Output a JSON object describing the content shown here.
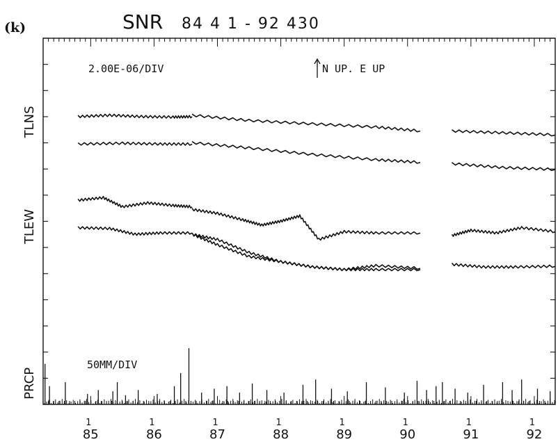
{
  "panel_label": "(k)",
  "title": "SNR",
  "title_range": "84 4 1 - 92 430",
  "chart_data": {
    "type": "line",
    "x_range": [
      84.25,
      92.33
    ],
    "x_ticks": [
      {
        "year": 85,
        "label_top": "1",
        "label_bottom": "85"
      },
      {
        "year": 86,
        "label_top": "1",
        "label_bottom": "86"
      },
      {
        "year": 87,
        "label_top": "1",
        "label_bottom": "87"
      },
      {
        "year": 88,
        "label_top": "1",
        "label_bottom": "88"
      },
      {
        "year": 89,
        "label_top": "1",
        "label_bottom": "89"
      },
      {
        "year": 90,
        "label_top": "1",
        "label_bottom": "90"
      },
      {
        "year": 91,
        "label_top": "1",
        "label_bottom": "91"
      },
      {
        "year": 92,
        "label_top": "1",
        "label_bottom": "92"
      }
    ],
    "y_scale_label": "2.00E-06/DIV",
    "direction_label": "N UP. E UP",
    "y_ticks_div": [
      0,
      1,
      2,
      3,
      4,
      5,
      6,
      7,
      8,
      9,
      10,
      11,
      12,
      13,
      14
    ],
    "y_labels": [
      {
        "text": "TLNS",
        "div": 10.8
      },
      {
        "text": "TLEW",
        "div": 6.8
      },
      {
        "text": "PRCP",
        "div": 0.8
      }
    ],
    "series": [
      {
        "group": "TLNS",
        "stroke": "#111111",
        "segments": [
          [
            [
              84.8,
              11.0
            ],
            [
              85.3,
              11.05
            ],
            [
              85.8,
              11.0
            ],
            [
              86.3,
              10.98
            ],
            [
              86.6,
              11.0
            ]
          ],
          [
            [
              86.6,
              11.05
            ],
            [
              87.5,
              10.85
            ],
            [
              88.5,
              10.72
            ],
            [
              89.5,
              10.6
            ],
            [
              90.2,
              10.45
            ]
          ],
          [
            [
              90.7,
              10.45
            ],
            [
              91.5,
              10.38
            ],
            [
              92.33,
              10.3
            ]
          ]
        ]
      },
      {
        "group": "TLNS",
        "stroke": "#111111",
        "segments": [
          [
            [
              84.8,
              9.95
            ],
            [
              85.5,
              9.98
            ],
            [
              86.1,
              9.95
            ],
            [
              86.6,
              9.95
            ]
          ],
          [
            [
              86.6,
              10.0
            ],
            [
              87.5,
              9.8
            ],
            [
              88.5,
              9.55
            ],
            [
              89.5,
              9.35
            ],
            [
              90.2,
              9.25
            ]
          ],
          [
            [
              90.7,
              9.2
            ],
            [
              91.5,
              9.05
            ],
            [
              92.33,
              8.98
            ]
          ]
        ]
      },
      {
        "group": "TLEW",
        "stroke": "#111111",
        "segments": [
          [
            [
              84.8,
              7.8
            ],
            [
              85.2,
              7.9
            ],
            [
              85.5,
              7.55
            ],
            [
              85.9,
              7.7
            ],
            [
              86.3,
              7.6
            ],
            [
              86.6,
              7.55
            ]
          ],
          [
            [
              86.6,
              7.45
            ],
            [
              87.0,
              7.3
            ],
            [
              87.4,
              7.05
            ],
            [
              87.7,
              6.85
            ],
            [
              88.0,
              7.0
            ],
            [
              88.3,
              7.2
            ],
            [
              88.6,
              6.3
            ],
            [
              89.0,
              6.6
            ],
            [
              89.5,
              6.55
            ],
            [
              90.2,
              6.55
            ]
          ],
          [
            [
              90.7,
              6.45
            ],
            [
              91.0,
              6.65
            ],
            [
              91.4,
              6.55
            ],
            [
              91.8,
              6.75
            ],
            [
              92.33,
              6.6
            ]
          ]
        ]
      },
      {
        "group": "TLEW",
        "stroke": "#111111",
        "segments": [
          [
            [
              84.8,
              6.75
            ],
            [
              85.3,
              6.72
            ],
            [
              85.7,
              6.5
            ],
            [
              86.1,
              6.55
            ],
            [
              86.6,
              6.55
            ]
          ],
          [
            [
              86.6,
              6.5
            ],
            [
              87.0,
              6.1
            ],
            [
              87.5,
              5.65
            ],
            [
              88.0,
              5.45
            ],
            [
              88.5,
              5.25
            ],
            [
              89.0,
              5.15
            ],
            [
              89.5,
              5.3
            ],
            [
              90.2,
              5.2
            ]
          ],
          [
            [
              90.7,
              5.35
            ],
            [
              91.2,
              5.25
            ],
            [
              91.7,
              5.25
            ],
            [
              92.33,
              5.28
            ]
          ]
        ]
      },
      {
        "group": "TLEW",
        "stroke": "#111111",
        "segments": [
          [
            [
              86.6,
              6.5
            ],
            [
              87.0,
              6.3
            ],
            [
              87.5,
              5.8
            ],
            [
              88.0,
              5.45
            ],
            [
              88.5,
              5.25
            ],
            [
              89.0,
              5.15
            ],
            [
              89.5,
              5.15
            ],
            [
              90.2,
              5.15
            ]
          ]
        ]
      }
    ],
    "prcp_label": "50MM/DIV",
    "prcp_peaks": [
      [
        84.28,
        1.55
      ],
      [
        84.35,
        0.7
      ],
      [
        84.6,
        0.85
      ],
      [
        84.95,
        0.4
      ],
      [
        85.12,
        0.55
      ],
      [
        85.35,
        0.5
      ],
      [
        85.42,
        0.85
      ],
      [
        85.55,
        0.35
      ],
      [
        85.75,
        0.55
      ],
      [
        86.05,
        0.4
      ],
      [
        86.32,
        0.7
      ],
      [
        86.42,
        1.2
      ],
      [
        86.55,
        2.15
      ],
      [
        86.75,
        0.45
      ],
      [
        86.95,
        0.6
      ],
      [
        87.15,
        0.7
      ],
      [
        87.35,
        0.45
      ],
      [
        87.55,
        0.8
      ],
      [
        87.78,
        0.55
      ],
      [
        88.05,
        0.45
      ],
      [
        88.35,
        0.75
      ],
      [
        88.55,
        0.95
      ],
      [
        88.8,
        0.6
      ],
      [
        89.05,
        0.5
      ],
      [
        89.35,
        0.85
      ],
      [
        89.65,
        0.65
      ],
      [
        89.95,
        0.45
      ],
      [
        90.15,
        0.9
      ],
      [
        90.3,
        0.55
      ],
      [
        90.45,
        0.7
      ],
      [
        90.55,
        0.85
      ],
      [
        90.75,
        0.6
      ],
      [
        90.95,
        0.45
      ],
      [
        91.2,
        0.75
      ],
      [
        91.5,
        0.85
      ],
      [
        91.65,
        0.55
      ],
      [
        91.8,
        0.95
      ],
      [
        92.05,
        0.6
      ],
      [
        92.25,
        0.5
      ]
    ]
  }
}
